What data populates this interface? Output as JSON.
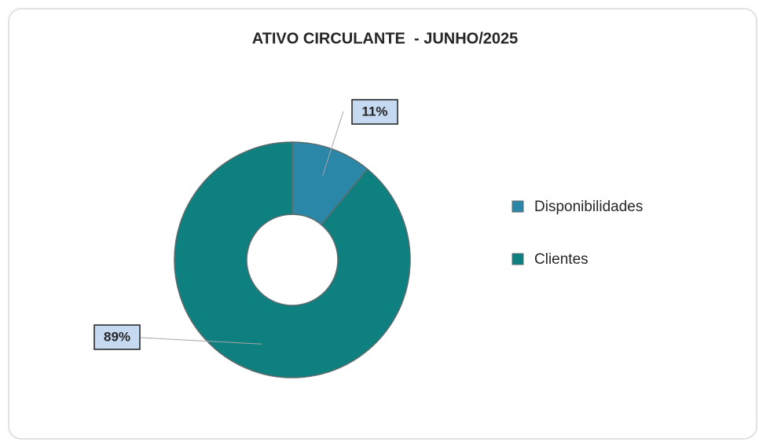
{
  "chart_data": {
    "type": "pie",
    "title": "ATIVO CIRCULANTE  - JUNHO/2025",
    "categories": [
      "Disponibilidades",
      "Clientes"
    ],
    "values": [
      11,
      89
    ],
    "value_labels": [
      "11%",
      "89%"
    ],
    "colors": [
      "#2a87a8",
      "#0f8080"
    ],
    "legend": "right"
  }
}
